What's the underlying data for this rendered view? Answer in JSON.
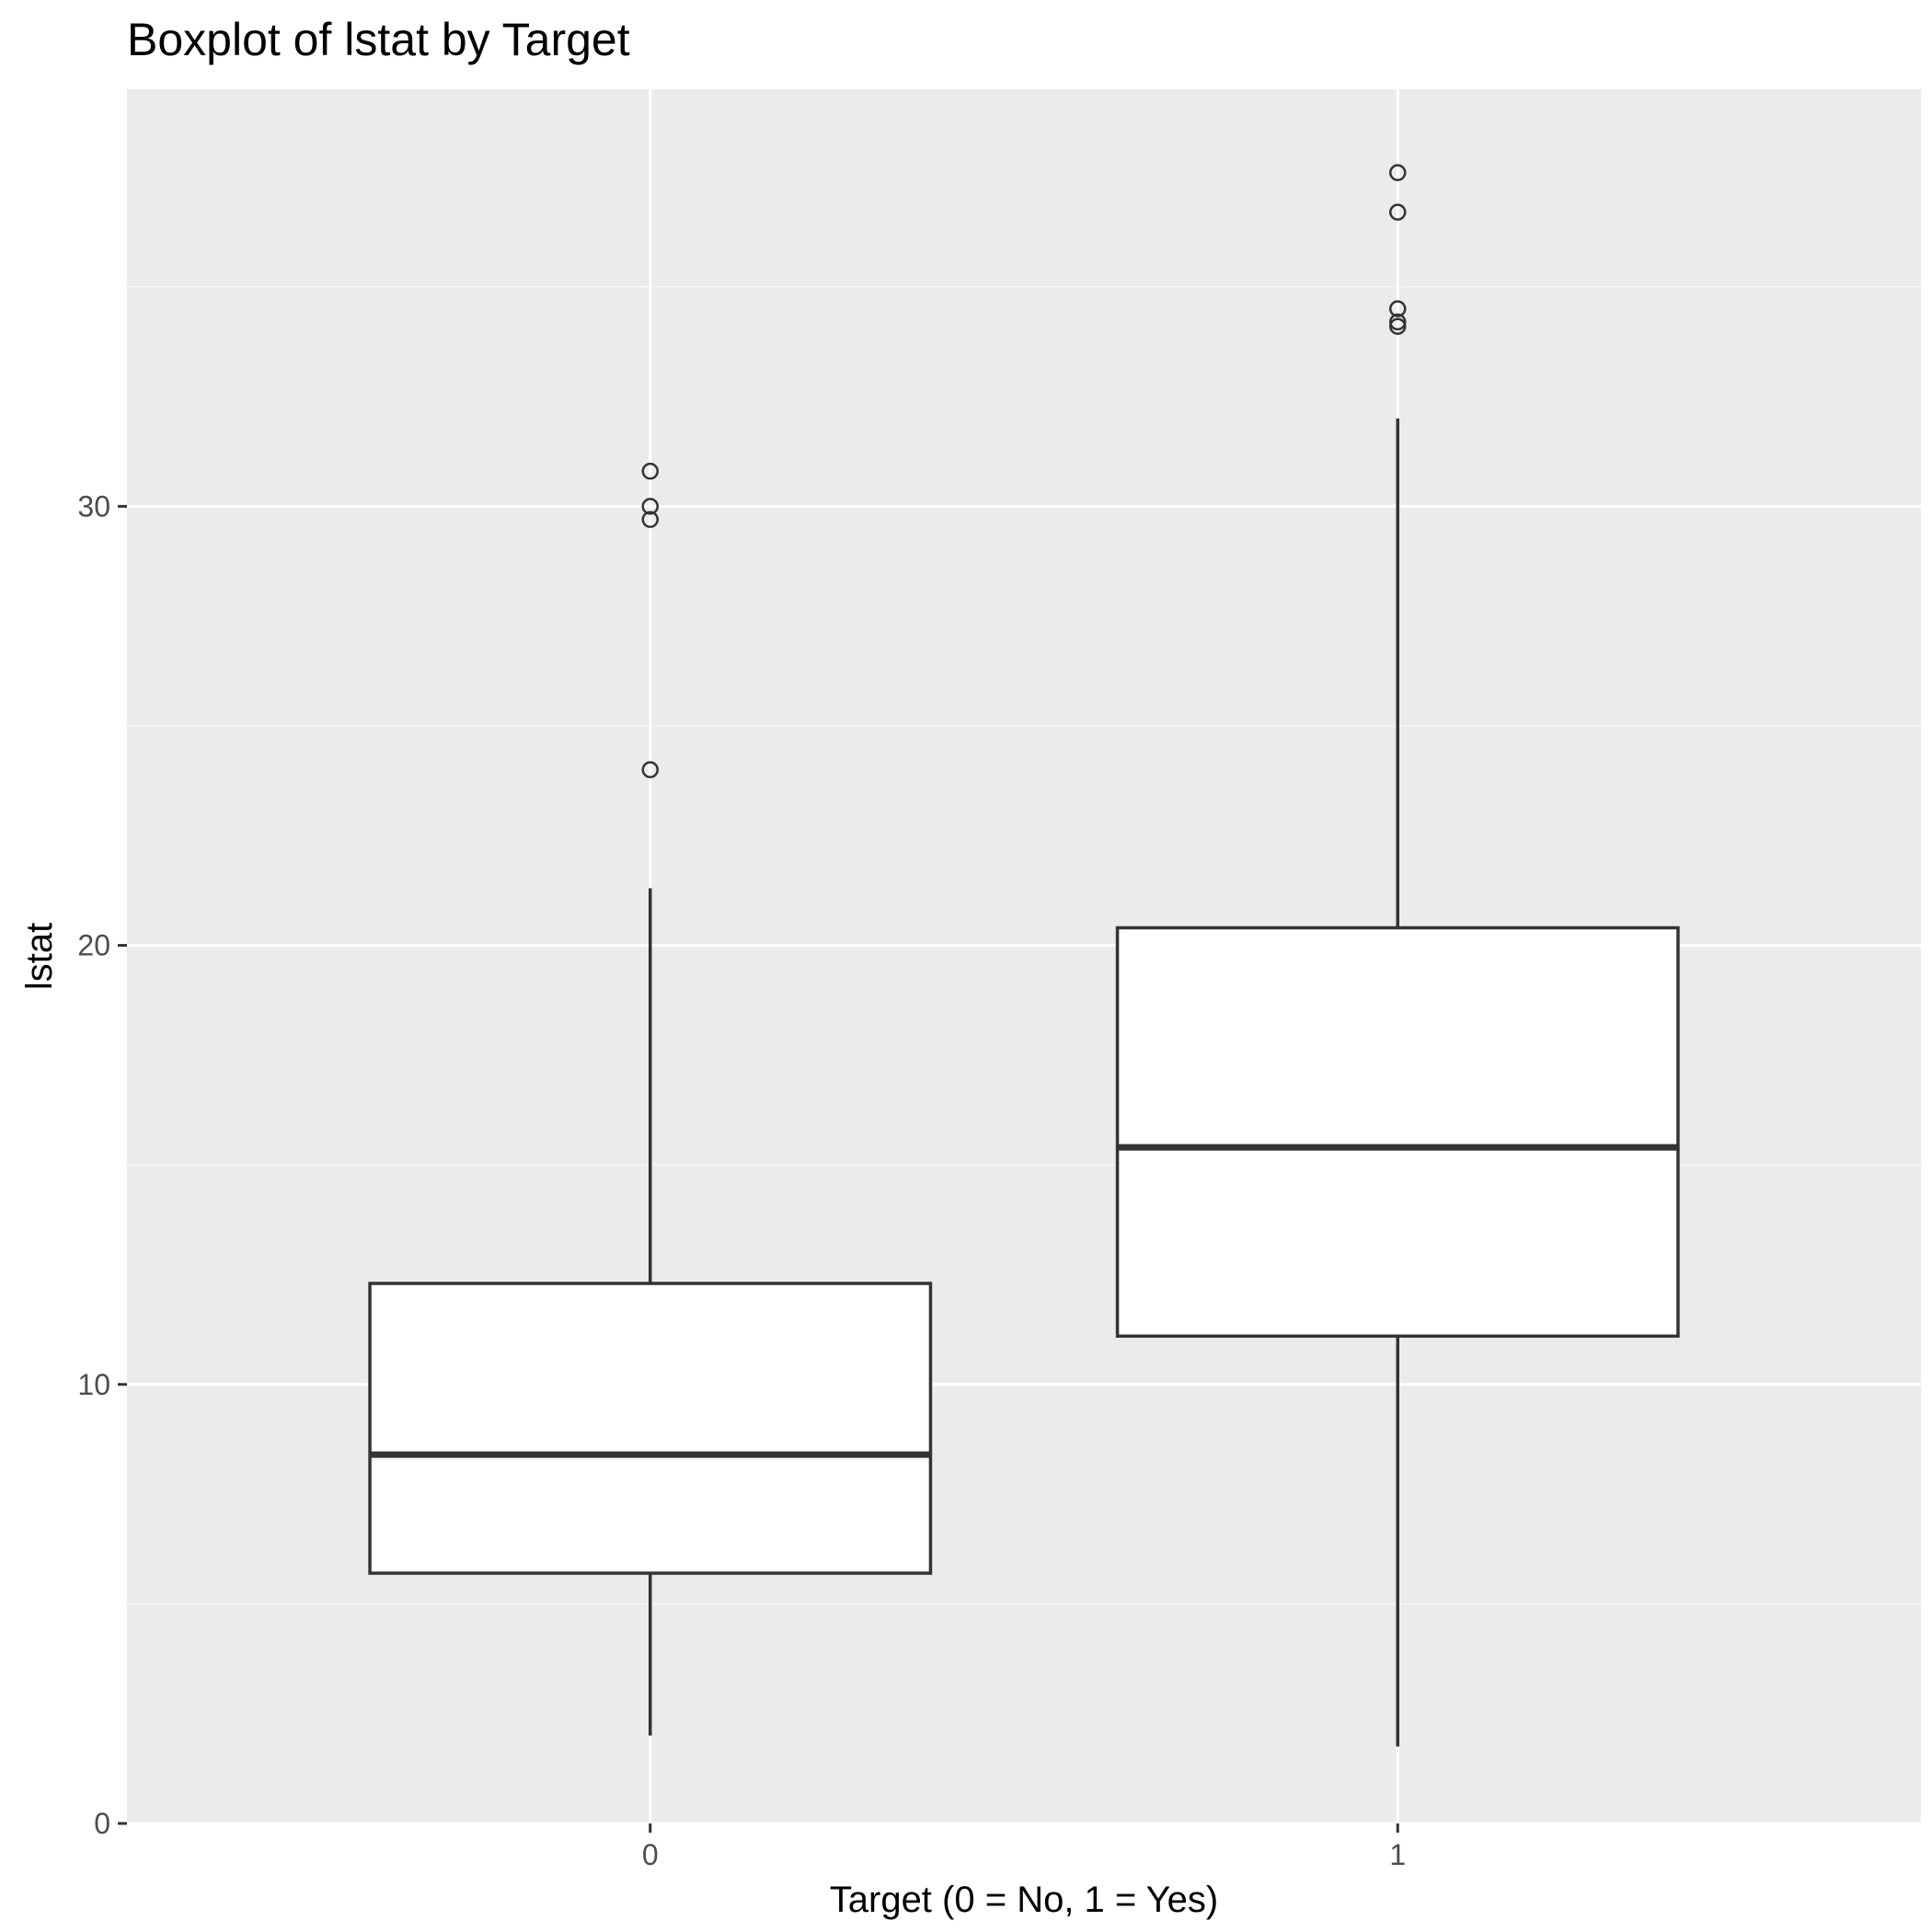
{
  "chart_data": {
    "type": "boxplot",
    "title": "Boxplot of lstat by Target",
    "xlabel": "Target (0 = No, 1 = Yes)",
    "ylabel": "lstat",
    "categories": [
      "0",
      "1"
    ],
    "yticks": [
      0,
      10,
      20,
      30
    ],
    "ylim": [
      0,
      39.5
    ],
    "grid": true,
    "boxes": [
      {
        "category": "0",
        "whisker_low": 2.0,
        "q1": 5.7,
        "median": 8.4,
        "q3": 12.3,
        "whisker_high": 21.3,
        "outliers": [
          24.0,
          29.7,
          30.0,
          30.8
        ]
      },
      {
        "category": "1",
        "whisker_low": 1.75,
        "q1": 11.1,
        "median": 15.4,
        "q3": 20.4,
        "whisker_high": 32.0,
        "outliers": [
          34.1,
          34.2,
          34.5,
          36.7,
          37.6
        ]
      }
    ],
    "colors": {
      "panel_background": "#ebebeb",
      "grid_major": "#ffffff",
      "grid_minor": "#f7f7f7",
      "box_fill": "#ffffff",
      "box_stroke": "#333333",
      "tick_text": "#4d4d4d",
      "axis_tick": "#333333"
    }
  }
}
